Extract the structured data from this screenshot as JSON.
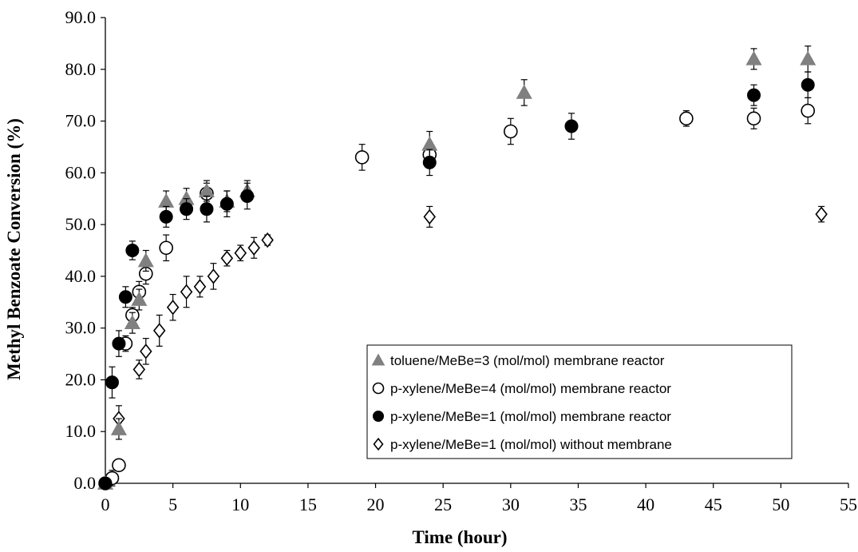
{
  "chart_data": {
    "type": "scatter",
    "title": "",
    "xlabel": "Time (hour)",
    "ylabel": "Methyl Benzoate Conversion (%)",
    "xlim": [
      0,
      55
    ],
    "ylim": [
      0,
      90
    ],
    "x_ticks": [
      "0",
      "5",
      "10",
      "15",
      "20",
      "25",
      "30",
      "35",
      "40",
      "45",
      "50",
      "55"
    ],
    "y_ticks": [
      "0.0",
      "10.0",
      "20.0",
      "30.0",
      "40.0",
      "50.0",
      "60.0",
      "70.0",
      "80.0",
      "90.0"
    ],
    "grid": false,
    "legend_position": "lower-right",
    "error_bars": true,
    "series": [
      {
        "name": "toluene/MeBe=3 (mol/mol) membrane reactor",
        "marker": "triangle",
        "color": "#808080",
        "points": [
          {
            "x": 0,
            "y": 0.0,
            "err": 0.5
          },
          {
            "x": 1,
            "y": 10.5,
            "err": 2.0
          },
          {
            "x": 2,
            "y": 31.0,
            "err": 2.0
          },
          {
            "x": 2.5,
            "y": 35.5,
            "err": 2.0
          },
          {
            "x": 3,
            "y": 43.0,
            "err": 2.0
          },
          {
            "x": 4.5,
            "y": 54.5,
            "err": 2.0
          },
          {
            "x": 6,
            "y": 55.0,
            "err": 2.0
          },
          {
            "x": 7.5,
            "y": 56.5,
            "err": 2.0
          },
          {
            "x": 9,
            "y": 54.5,
            "err": 2.0
          },
          {
            "x": 10.5,
            "y": 56.5,
            "err": 2.0
          },
          {
            "x": 24,
            "y": 65.5,
            "err": 2.5
          },
          {
            "x": 31,
            "y": 75.5,
            "err": 2.5
          },
          {
            "x": 48,
            "y": 82.0,
            "err": 2.0
          },
          {
            "x": 52,
            "y": 82.0,
            "err": 2.5
          }
        ]
      },
      {
        "name": "p-xylene/MeBe=4 (mol/mol) membrane reactor",
        "marker": "open-circle",
        "color": "#000000",
        "points": [
          {
            "x": 0,
            "y": 0.0,
            "err": 0.5
          },
          {
            "x": 0.5,
            "y": 1.0,
            "err": 1.5
          },
          {
            "x": 1,
            "y": 3.5,
            "err": 0.8
          },
          {
            "x": 1.5,
            "y": 27.0,
            "err": 1.5
          },
          {
            "x": 2,
            "y": 32.5,
            "err": 1.5
          },
          {
            "x": 2.5,
            "y": 37.0,
            "err": 2.0
          },
          {
            "x": 3,
            "y": 40.5,
            "err": 2.0
          },
          {
            "x": 4.5,
            "y": 45.5,
            "err": 2.5
          },
          {
            "x": 7.5,
            "y": 56.0,
            "err": 2.0
          },
          {
            "x": 19,
            "y": 63.0,
            "err": 2.5
          },
          {
            "x": 24,
            "y": 63.5,
            "err": 2.0
          },
          {
            "x": 30,
            "y": 68.0,
            "err": 2.5
          },
          {
            "x": 43,
            "y": 70.5,
            "err": 1.5
          },
          {
            "x": 48,
            "y": 70.5,
            "err": 2.0
          },
          {
            "x": 52,
            "y": 72.0,
            "err": 2.5
          }
        ]
      },
      {
        "name": "p-xylene/MeBe=1 (mol/mol) membrane reactor",
        "marker": "filled-circle",
        "color": "#000000",
        "points": [
          {
            "x": 0,
            "y": 0.0,
            "err": 0.5
          },
          {
            "x": 0.5,
            "y": 19.5,
            "err": 3.0
          },
          {
            "x": 1,
            "y": 27.0,
            "err": 2.5
          },
          {
            "x": 1.5,
            "y": 36.0,
            "err": 2.0
          },
          {
            "x": 2,
            "y": 45.0,
            "err": 1.8
          },
          {
            "x": 4.5,
            "y": 51.5,
            "err": 2.0
          },
          {
            "x": 6,
            "y": 53.0,
            "err": 2.0
          },
          {
            "x": 7.5,
            "y": 53.0,
            "err": 2.5
          },
          {
            "x": 9,
            "y": 54.0,
            "err": 2.5
          },
          {
            "x": 10.5,
            "y": 55.5,
            "err": 2.5
          },
          {
            "x": 24,
            "y": 62.0,
            "err": 2.5
          },
          {
            "x": 34.5,
            "y": 69.0,
            "err": 2.5
          },
          {
            "x": 48,
            "y": 75.0,
            "err": 2.0
          },
          {
            "x": 52,
            "y": 77.0,
            "err": 2.5
          }
        ]
      },
      {
        "name": "p-xylene/MeBe=1 (mol/mol) without membrane",
        "marker": "open-diamond",
        "color": "#000000",
        "points": [
          {
            "x": 1,
            "y": 12.5,
            "err": 2.5
          },
          {
            "x": 2.5,
            "y": 22.0,
            "err": 1.8
          },
          {
            "x": 3,
            "y": 25.5,
            "err": 2.5
          },
          {
            "x": 4,
            "y": 29.5,
            "err": 3.0
          },
          {
            "x": 5,
            "y": 34.0,
            "err": 2.5
          },
          {
            "x": 6,
            "y": 37.0,
            "err": 3.0
          },
          {
            "x": 7,
            "y": 38.0,
            "err": 2.0
          },
          {
            "x": 8,
            "y": 40.0,
            "err": 2.5
          },
          {
            "x": 9,
            "y": 43.5,
            "err": 1.5
          },
          {
            "x": 10,
            "y": 44.5,
            "err": 1.5
          },
          {
            "x": 11,
            "y": 45.5,
            "err": 2.0
          },
          {
            "x": 12,
            "y": 47.0,
            "err": 1.0
          },
          {
            "x": 24,
            "y": 51.5,
            "err": 2.0
          },
          {
            "x": 53,
            "y": 52.0,
            "err": 1.5
          }
        ]
      }
    ]
  }
}
